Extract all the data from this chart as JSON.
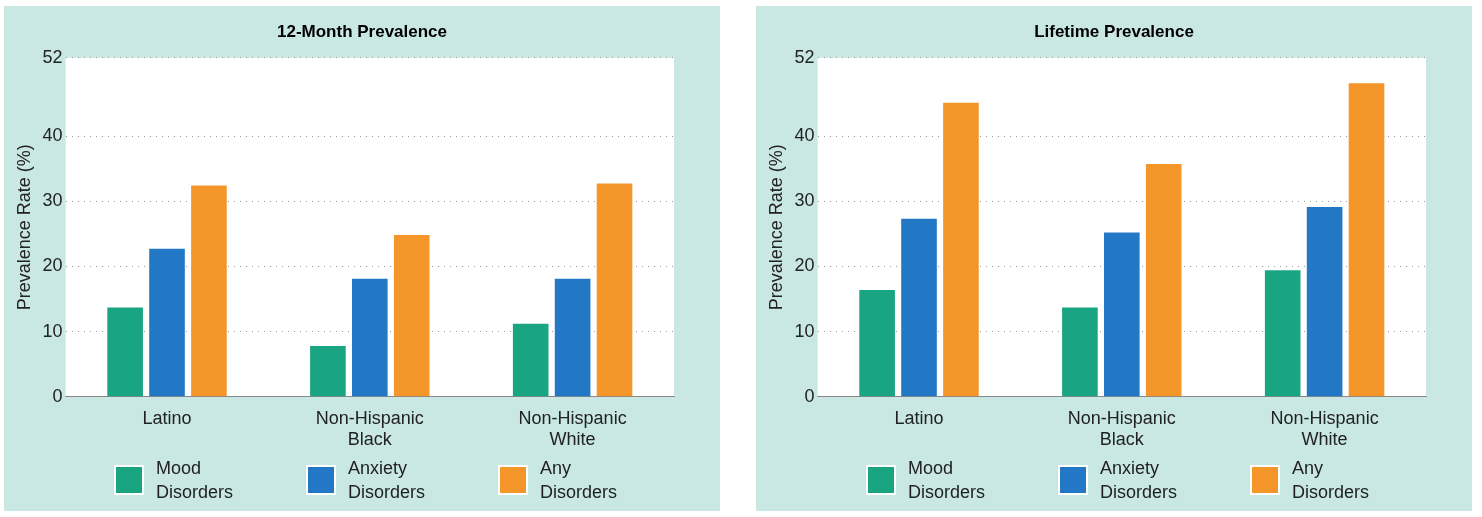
{
  "chart_data": [
    {
      "type": "bar",
      "title": "12-Month Prevalence",
      "ylabel": "Prevalence Rate (%)",
      "categories": [
        "Latino",
        "Non-Hispanic Black",
        "Non-Hispanic White"
      ],
      "series": [
        {
          "name": "Mood Disorders",
          "color": "#1aa582",
          "values": [
            13.7,
            7.8,
            11.2
          ]
        },
        {
          "name": "Anxiety Disorders",
          "color": "#2278c4",
          "values": [
            22.7,
            18.1,
            18.1
          ]
        },
        {
          "name": "Any Disorders",
          "color": "#f5962a",
          "values": [
            32.4,
            24.8,
            32.7
          ]
        }
      ],
      "ylim": [
        0,
        52
      ],
      "yticks": [
        0,
        10,
        20,
        30,
        40,
        52
      ],
      "grid": "y",
      "legend": "bottom"
    },
    {
      "type": "bar",
      "title": "Lifetime Prevalence",
      "ylabel": "Prevalence Rate (%)",
      "categories": [
        "Latino",
        "Non-Hispanic Black",
        "Non-Hispanic White"
      ],
      "series": [
        {
          "name": "Mood Disorders",
          "color": "#1aa582",
          "values": [
            16.4,
            13.7,
            19.4
          ]
        },
        {
          "name": "Anxiety Disorders",
          "color": "#2278c4",
          "values": [
            27.3,
            25.2,
            29.1
          ]
        },
        {
          "name": "Any Disorders",
          "color": "#f5962a",
          "values": [
            45.1,
            35.7,
            48.1
          ]
        }
      ],
      "ylim": [
        0,
        52
      ],
      "yticks": [
        0,
        10,
        20,
        30,
        40,
        52
      ],
      "grid": "y",
      "legend": "bottom"
    }
  ]
}
